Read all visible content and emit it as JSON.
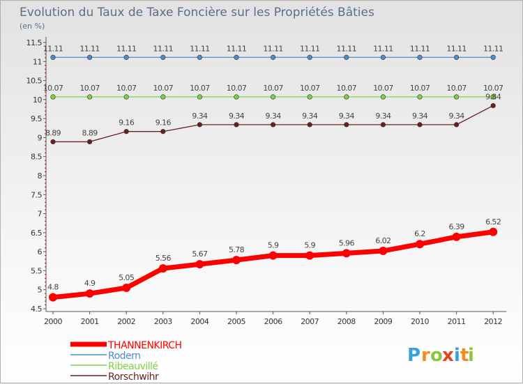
{
  "chart_data": {
    "type": "line",
    "title": "Evolution du Taux de Taxe Foncière sur les Propriétés Bâties",
    "subtitle": "(en %)",
    "xlabel": "",
    "ylabel": "",
    "ylim": [
      4.5,
      11.5
    ],
    "y_ticks": [
      "4.5",
      "5",
      "5.5",
      "6",
      "6.5",
      "7",
      "7.5",
      "8",
      "8.5",
      "9",
      "9.5",
      "10",
      "10.5",
      "11",
      "11.5"
    ],
    "x": [
      "2000",
      "2001",
      "2002",
      "2003",
      "2004",
      "2005",
      "2006",
      "2007",
      "2008",
      "2009",
      "2010",
      "2011",
      "2012"
    ],
    "series": [
      {
        "name": "THANNENKIRCH",
        "color": "#ff0000",
        "values": [
          4.8,
          4.9,
          5.05,
          5.56,
          5.67,
          5.78,
          5.9,
          5.9,
          5.96,
          6.02,
          6.2,
          6.39,
          6.52
        ],
        "labels": [
          "4.8",
          "4.9",
          "5.05",
          "5.56",
          "5.67",
          "5.78",
          "5.9",
          "5.9",
          "5.96",
          "6.02",
          "6.2",
          "6.39",
          "6.52"
        ]
      },
      {
        "name": "Rodern",
        "color": "#4a8ccc",
        "values": [
          11.11,
          11.11,
          11.11,
          11.11,
          11.11,
          11.11,
          11.11,
          11.11,
          11.11,
          11.11,
          11.11,
          11.11,
          11.11
        ],
        "labels": [
          "11.11",
          "11.11",
          "11.11",
          "11.11",
          "11.11",
          "11.11",
          "11.11",
          "11.11",
          "11.11",
          "11.11",
          "11.11",
          "11.11",
          "11.11"
        ]
      },
      {
        "name": "Ribeauvillé",
        "color": "#80d040",
        "values": [
          10.07,
          10.07,
          10.07,
          10.07,
          10.07,
          10.07,
          10.07,
          10.07,
          10.07,
          10.07,
          10.07,
          10.07,
          10.07
        ],
        "labels": [
          "10.07",
          "10.07",
          "10.07",
          "10.07",
          "10.07",
          "10.07",
          "10.07",
          "10.07",
          "10.07",
          "10.07",
          "10.07",
          "10.07",
          "10.07"
        ]
      },
      {
        "name": "Rorschwihr",
        "color": "#6b1e1e",
        "values": [
          8.89,
          8.89,
          9.16,
          9.16,
          9.34,
          9.34,
          9.34,
          9.34,
          9.34,
          9.34,
          9.34,
          9.34,
          9.84
        ],
        "labels": [
          "8.89",
          "8.89",
          "9.16",
          "9.16",
          "9.34",
          "9.34",
          "9.34",
          "9.34",
          "9.34",
          "9.34",
          "9.34",
          "9.34",
          "9.84"
        ]
      }
    ],
    "grid": false,
    "legend_position": "bottom-left"
  },
  "logo": {
    "letters": [
      "P",
      "r",
      "o",
      "x",
      "i",
      "t",
      "i"
    ],
    "colors": [
      "#3aa0dc",
      "#f28c1e",
      "#8cc63f",
      "#e8401c",
      "#3aa0dc",
      "#f28c1e",
      "#8cc63f"
    ]
  }
}
